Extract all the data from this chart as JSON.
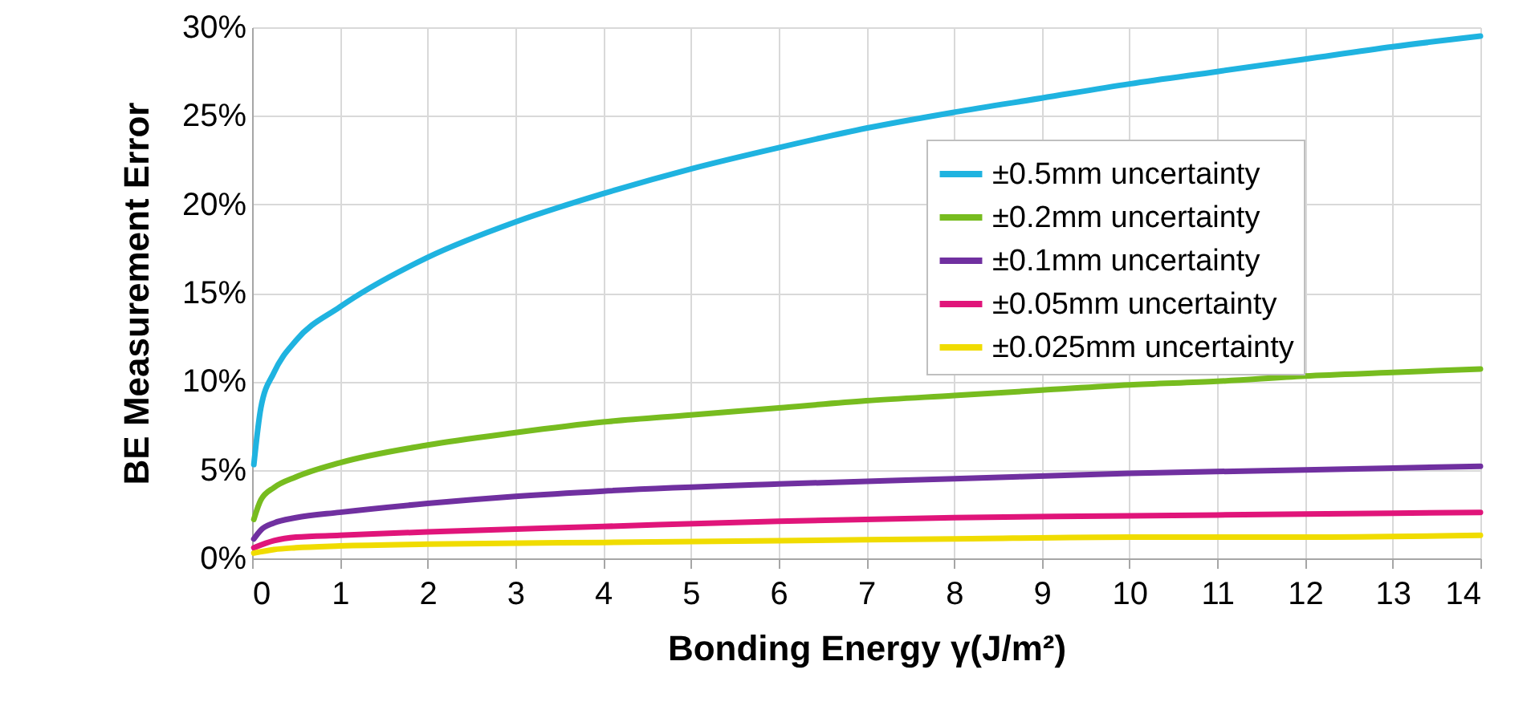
{
  "chart_data": {
    "type": "line",
    "xlabel": "Bonding Energy γ(J/m²)",
    "ylabel": "BE Measurement Error",
    "xlim": [
      0,
      14
    ],
    "xticks": [
      0,
      1,
      2,
      3,
      4,
      5,
      6,
      7,
      8,
      9,
      10,
      11,
      12,
      13,
      14
    ],
    "ylim": [
      0,
      30
    ],
    "yticks": [
      {
        "value": 0,
        "label": "0%"
      },
      {
        "value": 5,
        "label": "5%"
      },
      {
        "value": 10,
        "label": "10%"
      },
      {
        "value": 15,
        "label": "15%"
      },
      {
        "value": 20,
        "label": "20%"
      },
      {
        "value": 25,
        "label": "25%"
      },
      {
        "value": 30,
        "label": "30%"
      }
    ],
    "grid": true,
    "legend": "top right",
    "marker": "none",
    "line_style": "solid",
    "series": [
      {
        "name": "±0.5mm uncertainty",
        "color": "#1fb3e0",
        "x": [
          0.02,
          0.1,
          0.25,
          0.5,
          1,
          2,
          3,
          4,
          5,
          6,
          7,
          8,
          9,
          10,
          11,
          12,
          13,
          14
        ],
        "values": [
          5.3,
          8.5,
          10.5,
          12.3,
          14.2,
          17,
          19,
          20.6,
          22,
          23.2,
          24.3,
          25.2,
          26,
          26.8,
          27.5,
          28.2,
          28.9,
          29.5
        ]
      },
      {
        "name": "±0.2mm uncertainty",
        "color": "#77bc1f",
        "x": [
          0.02,
          0.1,
          0.25,
          0.5,
          1,
          2,
          3,
          4,
          5,
          6,
          7,
          8,
          9,
          10,
          11,
          12,
          13,
          14
        ],
        "values": [
          2.2,
          3.3,
          4,
          4.6,
          5.4,
          6.4,
          7.1,
          7.7,
          8.1,
          8.5,
          8.9,
          9.2,
          9.5,
          9.8,
          10,
          10.3,
          10.5,
          10.7
        ]
      },
      {
        "name": "±0.1mm uncertainty",
        "color": "#7030a0",
        "x": [
          0.02,
          0.1,
          0.25,
          0.5,
          1,
          2,
          3,
          4,
          6,
          8,
          10,
          12,
          14
        ],
        "values": [
          1.1,
          1.6,
          2,
          2.3,
          2.6,
          3.1,
          3.5,
          3.8,
          4.2,
          4.5,
          4.8,
          5,
          5.2
        ]
      },
      {
        "name": "±0.05mm uncertainty",
        "color": "#e0157a",
        "x": [
          0.02,
          0.25,
          0.5,
          1,
          2,
          4,
          6,
          8,
          10,
          12,
          14
        ],
        "values": [
          0.6,
          1,
          1.2,
          1.3,
          1.5,
          1.8,
          2.1,
          2.3,
          2.4,
          2.5,
          2.6
        ]
      },
      {
        "name": "±0.025mm uncertainty",
        "color": "#f0dc00",
        "x": [
          0.02,
          0.25,
          0.5,
          1,
          2,
          4,
          6,
          8,
          10,
          12,
          14
        ],
        "values": [
          0.3,
          0.5,
          0.6,
          0.7,
          0.8,
          0.9,
          1,
          1.1,
          1.2,
          1.2,
          1.3
        ]
      }
    ]
  }
}
